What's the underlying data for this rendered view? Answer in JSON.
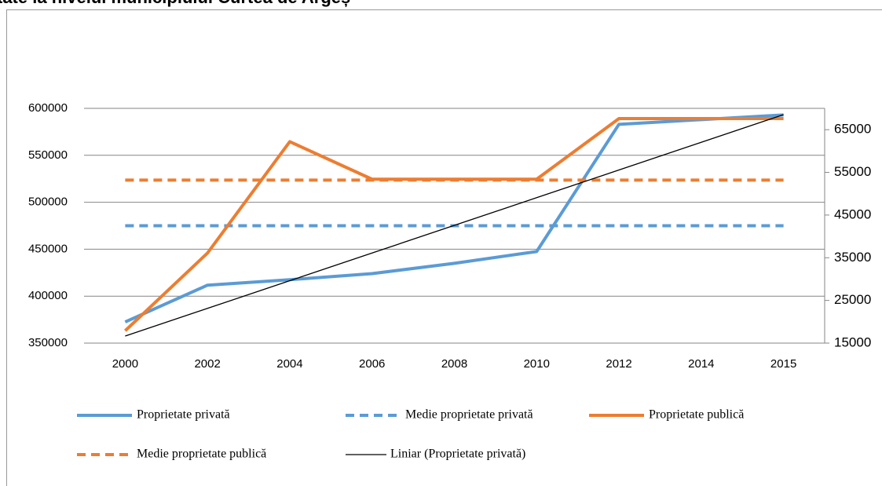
{
  "chart_data": {
    "type": "line",
    "title": "tate la nivelul municipiului Curtea de Argeș",
    "categories": [
      "2000",
      "2002",
      "2004",
      "2006",
      "2008",
      "2010",
      "2012",
      "2014",
      "2015"
    ],
    "series": [
      {
        "name": "Proprietate privată",
        "color": "#5b9bd5",
        "style": "solid",
        "values": [
          372500,
          411700,
          417500,
          424000,
          435000,
          447500,
          583000,
          588000,
          593000
        ]
      },
      {
        "name": "Medie proprietate privată",
        "color": "#5b9bd5",
        "style": "dashed",
        "values": [
          475000,
          475000,
          475000,
          475000,
          475000,
          475000,
          475000,
          475000,
          475000
        ]
      },
      {
        "name": "Proprietate publică",
        "color": "#ed7d31",
        "style": "solid",
        "axis": "y2",
        "values": [
          17900,
          36100,
          62200,
          53400,
          53400,
          53400,
          67600,
          67600,
          67600
        ]
      },
      {
        "name": "Medie proprietate publică",
        "color": "#ed7d31",
        "style": "dashed",
        "axis": "y2",
        "values": [
          53200,
          53200,
          53200,
          53200,
          53200,
          53200,
          53200,
          53200,
          53200
        ]
      },
      {
        "name": "Liniar (Proprietate privată)",
        "color": "#000000",
        "style": "thin",
        "values": [
          357500,
          386975,
          416450,
          445925,
          475400,
          504875,
          534350,
          563825,
          593300
        ]
      }
    ],
    "ylim": [
      350000,
      600000
    ],
    "yticks": [
      350000,
      400000,
      450000,
      500000,
      550000,
      600000
    ],
    "y2lim": [
      15000,
      70000
    ],
    "y2ticks": [
      15000,
      25000,
      35000,
      45000,
      55000,
      65000
    ],
    "grid": true,
    "legend": "bottom"
  }
}
